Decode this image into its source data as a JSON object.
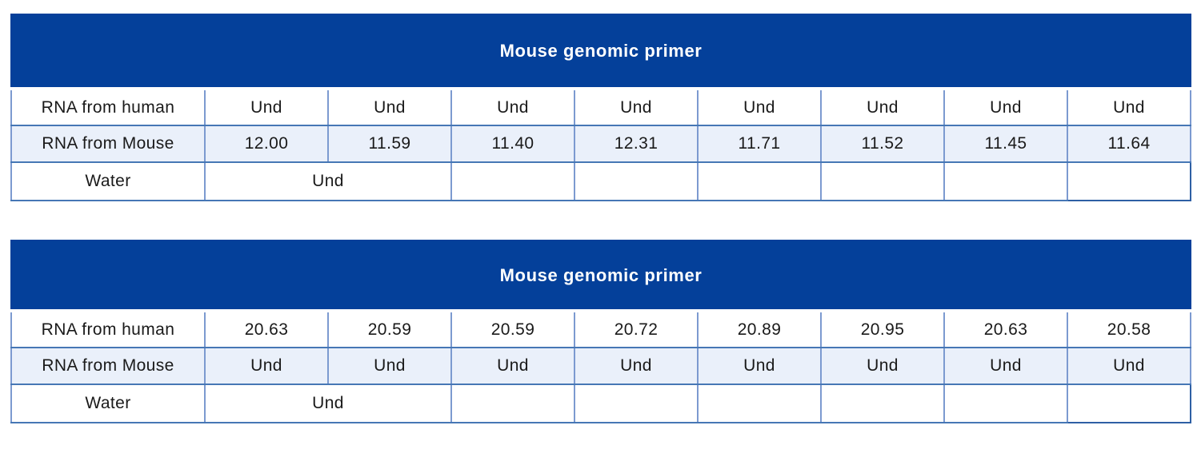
{
  "chart_data": [
    {
      "type": "table",
      "title": "Mouse genomic primer",
      "columns": 8,
      "rows": [
        {
          "label": "RNA from human",
          "values": [
            "Und",
            "Und",
            "Und",
            "Und",
            "Und",
            "Und",
            "Und",
            "Und"
          ]
        },
        {
          "label": "RNA from Mouse",
          "values": [
            "12.00",
            "11.59",
            "11.40",
            "12.31",
            "11.71",
            "11.52",
            "11.45",
            "11.64"
          ]
        },
        {
          "label": "Water",
          "merged_value": "Und",
          "merged_colspan": 2,
          "trailing_empty_cells": 5
        }
      ]
    },
    {
      "type": "table",
      "title": "Mouse genomic primer",
      "columns": 8,
      "rows": [
        {
          "label": "RNA from human",
          "values": [
            "20.63",
            "20.59",
            "20.59",
            "20.72",
            "20.89",
            "20.95",
            "20.63",
            "20.58"
          ]
        },
        {
          "label": "RNA from Mouse",
          "values": [
            "Und",
            "Und",
            "Und",
            "Und",
            "Und",
            "Und",
            "Und",
            "Und"
          ]
        },
        {
          "label": "Water",
          "merged_value": "Und",
          "merged_colspan": 2,
          "trailing_empty_cells": 5
        }
      ]
    }
  ],
  "colors": {
    "header_bg": "#04409A",
    "header_text": "#FFFFFF",
    "row_bg": "#FFFFFF",
    "row_alt_bg": "#EAF0FA",
    "border_vertical": "#7C9AD0",
    "border_horizontal": "#4677B5",
    "border_outer": "#2E5FA4",
    "text": "#1A1A1A"
  }
}
